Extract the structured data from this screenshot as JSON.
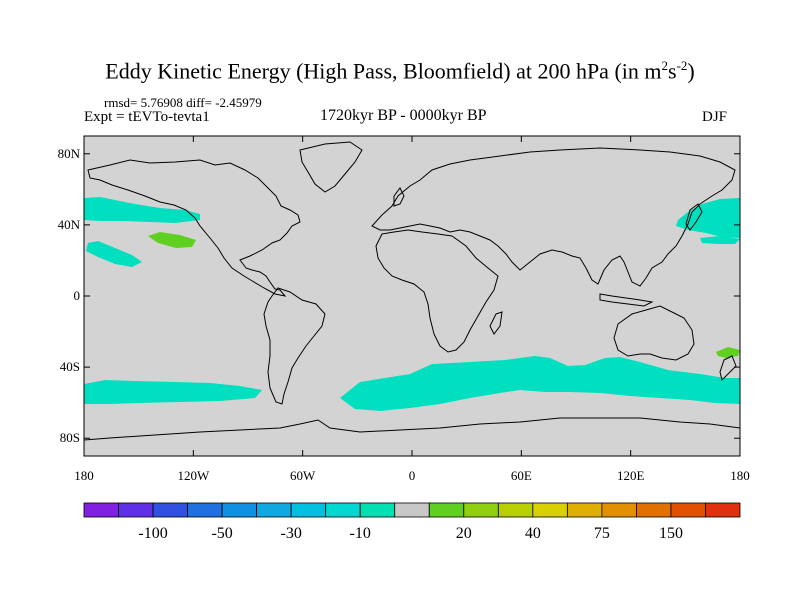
{
  "title": {
    "main": "Eddy Kinetic Energy (High Pass, Bloomfield) at 200 hPa (in m",
    "sup1": "2",
    "mid": "s",
    "sup2": "-2",
    "close": ")"
  },
  "stats": {
    "rmsd_text": "rmsd= 5.76908 diff= -2.45979"
  },
  "experiment": "Expt = tEVTo-tevta1",
  "period": "1720kyr BP - 0000kyr BP",
  "season": "DJF",
  "map": {
    "land_color": "#d3d3d3",
    "coast_color": "#000000",
    "lat_ticks": [
      {
        "value": 80,
        "label": "80N"
      },
      {
        "value": 40,
        "label": "40N"
      },
      {
        "value": 0,
        "label": "0"
      },
      {
        "value": -40,
        "label": "40S"
      },
      {
        "value": -80,
        "label": "80S"
      }
    ],
    "lon_ticks": [
      {
        "value": -180,
        "label": "180"
      },
      {
        "value": -120,
        "label": "120W"
      },
      {
        "value": -60,
        "label": "60W"
      },
      {
        "value": 0,
        "label": "0"
      },
      {
        "value": 60,
        "label": "60E"
      },
      {
        "value": 120,
        "label": "120E"
      },
      {
        "value": 180,
        "label": "180"
      }
    ],
    "anomaly_regions": [
      {
        "name": "north-pacific-east-band",
        "level": "-10",
        "color": "#00e0c0"
      },
      {
        "name": "north-pacific-west-band",
        "level": "-10",
        "color": "#00e0c0"
      },
      {
        "name": "subtropical-pacific-band",
        "level": "-10",
        "color": "#00e0c0"
      },
      {
        "name": "north-pacific-positive-patch",
        "level": "20",
        "color": "#60d020"
      },
      {
        "name": "southern-pacific-band",
        "level": "-10",
        "color": "#00e0c0"
      },
      {
        "name": "southern-atlantic-indian-band",
        "level": "-10",
        "color": "#00e0c0"
      },
      {
        "name": "tasman-positive-patch",
        "level": "20",
        "color": "#60d020"
      }
    ]
  },
  "colorbar": {
    "colors": [
      "#8020e0",
      "#6030e8",
      "#3050e0",
      "#2070e0",
      "#1090e0",
      "#10a8e0",
      "#00c0e0",
      "#00d8d0",
      "#00e0b0",
      "#c8c8c8",
      "#60d020",
      "#90d010",
      "#b8d000",
      "#d8d000",
      "#e0b000",
      "#e09000",
      "#e07000",
      "#e05000",
      "#e03010"
    ],
    "labels": [
      {
        "value": "-100",
        "after_box": 2
      },
      {
        "value": "-50",
        "after_box": 4
      },
      {
        "value": "-30",
        "after_box": 6
      },
      {
        "value": "-10",
        "after_box": 8
      },
      {
        "value": "20",
        "after_box": 11
      },
      {
        "value": "40",
        "after_box": 13
      },
      {
        "value": "75",
        "after_box": 15
      },
      {
        "value": "150",
        "after_box": 17
      }
    ]
  }
}
